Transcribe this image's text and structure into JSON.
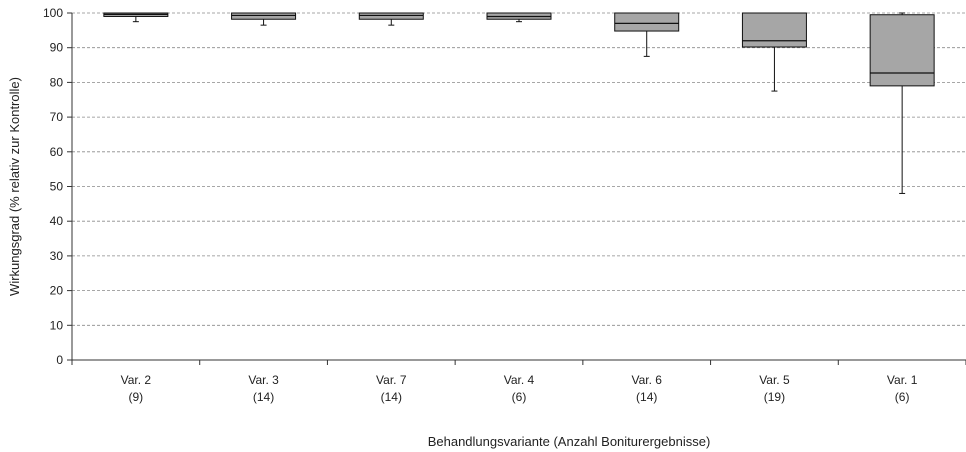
{
  "chart_data": {
    "type": "boxplot",
    "xlabel": "Behandlungsvariante (Anzahl Boniturergebnisse)",
    "ylabel": "Wirkungsgrad (% relativ zur Kontrolle)",
    "ylim": [
      0,
      100
    ],
    "yticks": [
      0,
      10,
      20,
      30,
      40,
      50,
      60,
      70,
      80,
      90,
      100
    ],
    "grid": true,
    "box_color": "#a6a6a6",
    "categories": [
      {
        "label": "Var. 2",
        "n": "(9)",
        "min": 97.5,
        "q1": 99.0,
        "median": 99.6,
        "q3": 100,
        "max": 100
      },
      {
        "label": "Var. 3",
        "n": "(14)",
        "min": 96.5,
        "q1": 98.2,
        "median": 99.3,
        "q3": 100,
        "max": 100
      },
      {
        "label": "Var. 7",
        "n": "(14)",
        "min": 96.5,
        "q1": 98.2,
        "median": 99.3,
        "q3": 100,
        "max": 100
      },
      {
        "label": "Var. 4",
        "n": "(6)",
        "min": 97.5,
        "q1": 98.2,
        "median": 99.0,
        "q3": 100,
        "max": 100
      },
      {
        "label": "Var. 6",
        "n": "(14)",
        "min": 87.5,
        "q1": 94.8,
        "median": 97.0,
        "q3": 100,
        "max": 100
      },
      {
        "label": "Var. 5",
        "n": "(19)",
        "min": 77.5,
        "q1": 90.2,
        "median": 92.0,
        "q3": 100,
        "max": 100
      },
      {
        "label": "Var. 1",
        "n": "(6)",
        "min": 48.0,
        "q1": 79.0,
        "median": 82.7,
        "q3": 99.5,
        "max": 100
      }
    ]
  }
}
